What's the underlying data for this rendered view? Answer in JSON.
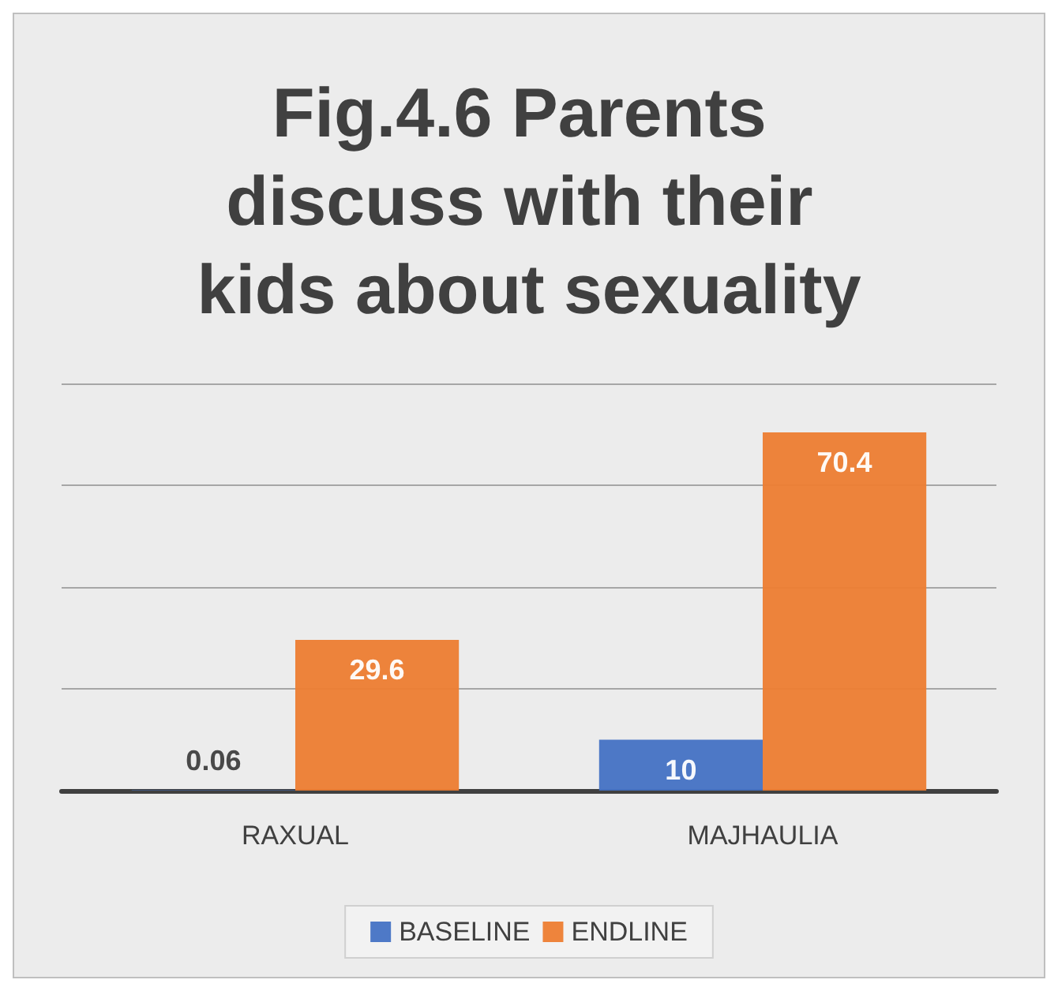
{
  "chart_data": {
    "type": "bar",
    "title": "Fig.4.6 Parents discuss with their kids about sexuality",
    "categories": [
      "RAXUAL",
      "MAJHAULIA"
    ],
    "series": [
      {
        "name": "BASELINE",
        "color": "#4472c4",
        "values": [
          0.06,
          10
        ]
      },
      {
        "name": "ENDLINE",
        "color": "#ed7d31",
        "values": [
          29.6,
          70.4
        ]
      }
    ],
    "ylim": [
      0,
      80
    ],
    "tick_labels": "x",
    "grid": "y",
    "legend": "bottom",
    "data_labels": true
  }
}
